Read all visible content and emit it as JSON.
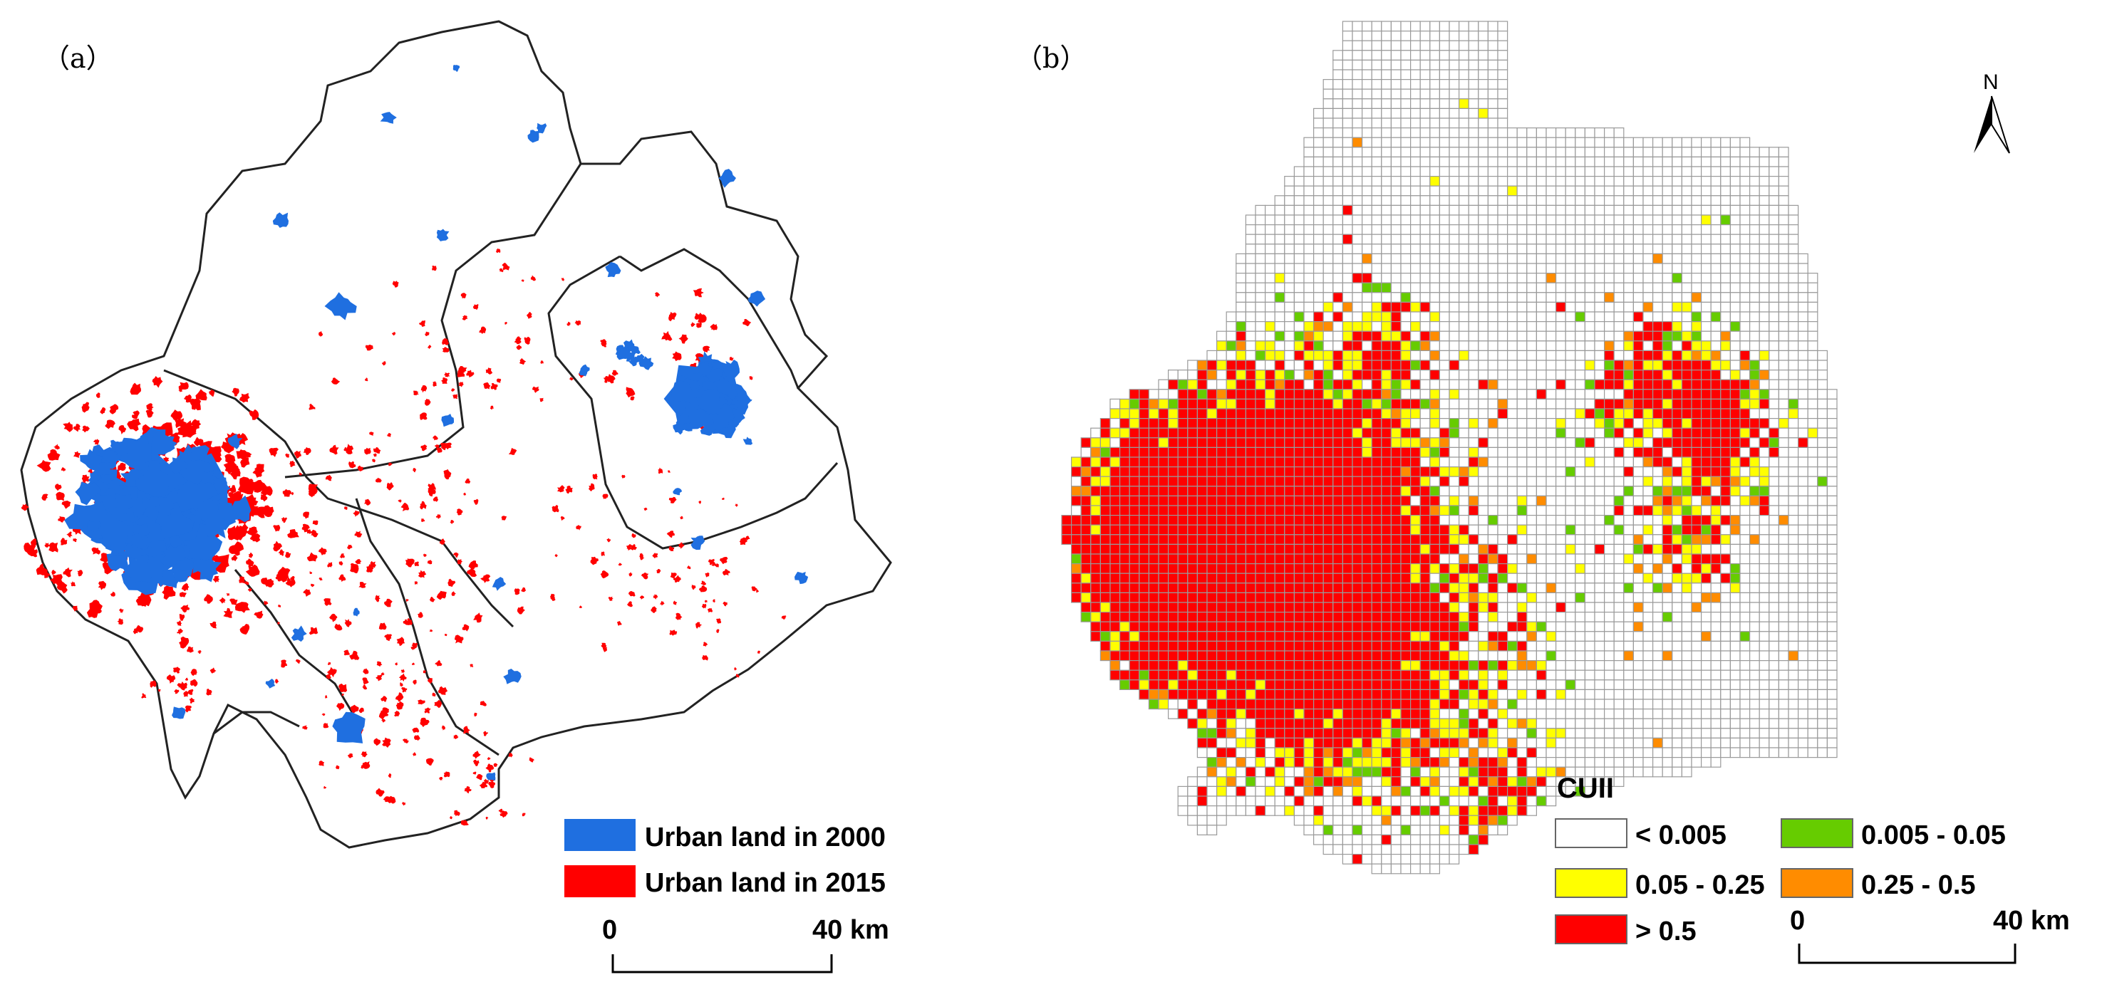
{
  "panel_a": {
    "label": "（a）",
    "legend": [
      {
        "label": "Urban land in 2000",
        "color": "#1f6fe0"
      },
      {
        "label": "Urban land in 2015",
        "color": "#ff0000"
      }
    ],
    "scale_bar": {
      "start": "0",
      "end": "40 km"
    }
  },
  "panel_b": {
    "label": "（b）",
    "north_arrow": {
      "label": "N",
      "icon": "north-arrow-icon"
    },
    "legend_title": "CUII",
    "legend": [
      {
        "label": "< 0.005",
        "color": "#ffffff"
      },
      {
        "label": "0.005 - 0.05",
        "color": "#66cc00"
      },
      {
        "label": "0.05 - 0.25",
        "color": "#ffff00"
      },
      {
        "label": "0.25 - 0.5",
        "color": "#ff8c00"
      },
      {
        "label": "> 0.5",
        "color": "#ff0000"
      }
    ],
    "scale_bar": {
      "start": "0",
      "end": "40 km"
    }
  }
}
